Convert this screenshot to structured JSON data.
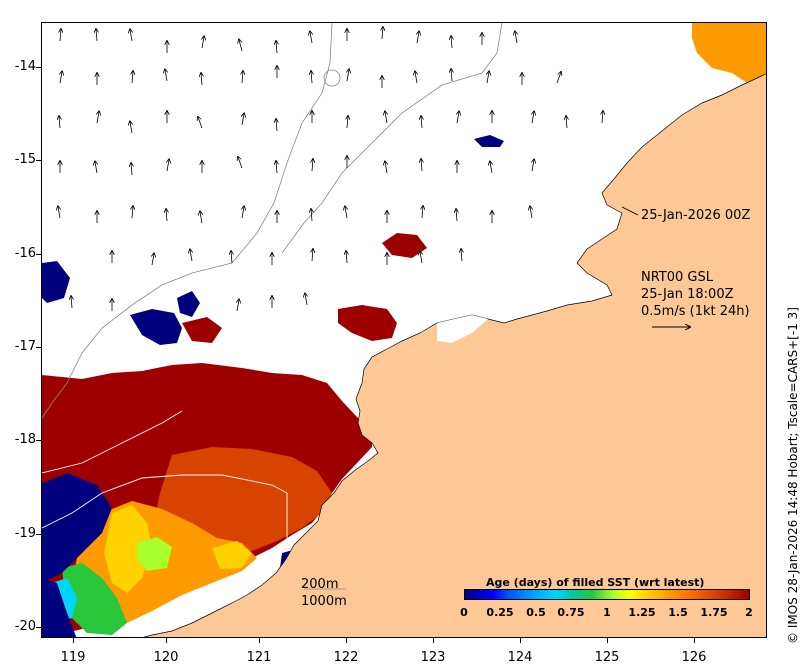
{
  "axes": {
    "y_ticks": [
      "-14",
      "-15",
      "-16",
      "-17",
      "-18",
      "-19",
      "-20"
    ],
    "x_ticks": [
      "119",
      "120",
      "121",
      "122",
      "123",
      "124",
      "125",
      "126"
    ]
  },
  "annotations": {
    "date_label": "25-Jan-2026 00Z",
    "product": "NRT00 GSL",
    "time": "25-Jan 18:00Z",
    "vector_scale": "0.5m/s (1kt 24h)",
    "isobath_200": "200m",
    "isobath_1000": "1000m"
  },
  "legend": {
    "title": "Age (days) of filled SST (wrt latest)",
    "ticks": [
      "0",
      "0.25",
      "0.5",
      "0.75",
      "1",
      "1.25",
      "1.5",
      "1.75",
      "2"
    ]
  },
  "credit": "© IMOS 28-Jan-2026 14:48 Hobart; Tscale=CARS+[-1 3]",
  "colors": {
    "land": "#fdc896",
    "age_0": "#00007f",
    "age_0_25": "#0052ff",
    "age_0_5": "#00d5ff",
    "age_0_75": "#29c83c",
    "age_1": "#a8ff2c",
    "age_1_25": "#ffd200",
    "age_1_5": "#ff9a00",
    "age_1_75": "#d64400",
    "age_2": "#9e0000",
    "vector": "#000000"
  }
}
